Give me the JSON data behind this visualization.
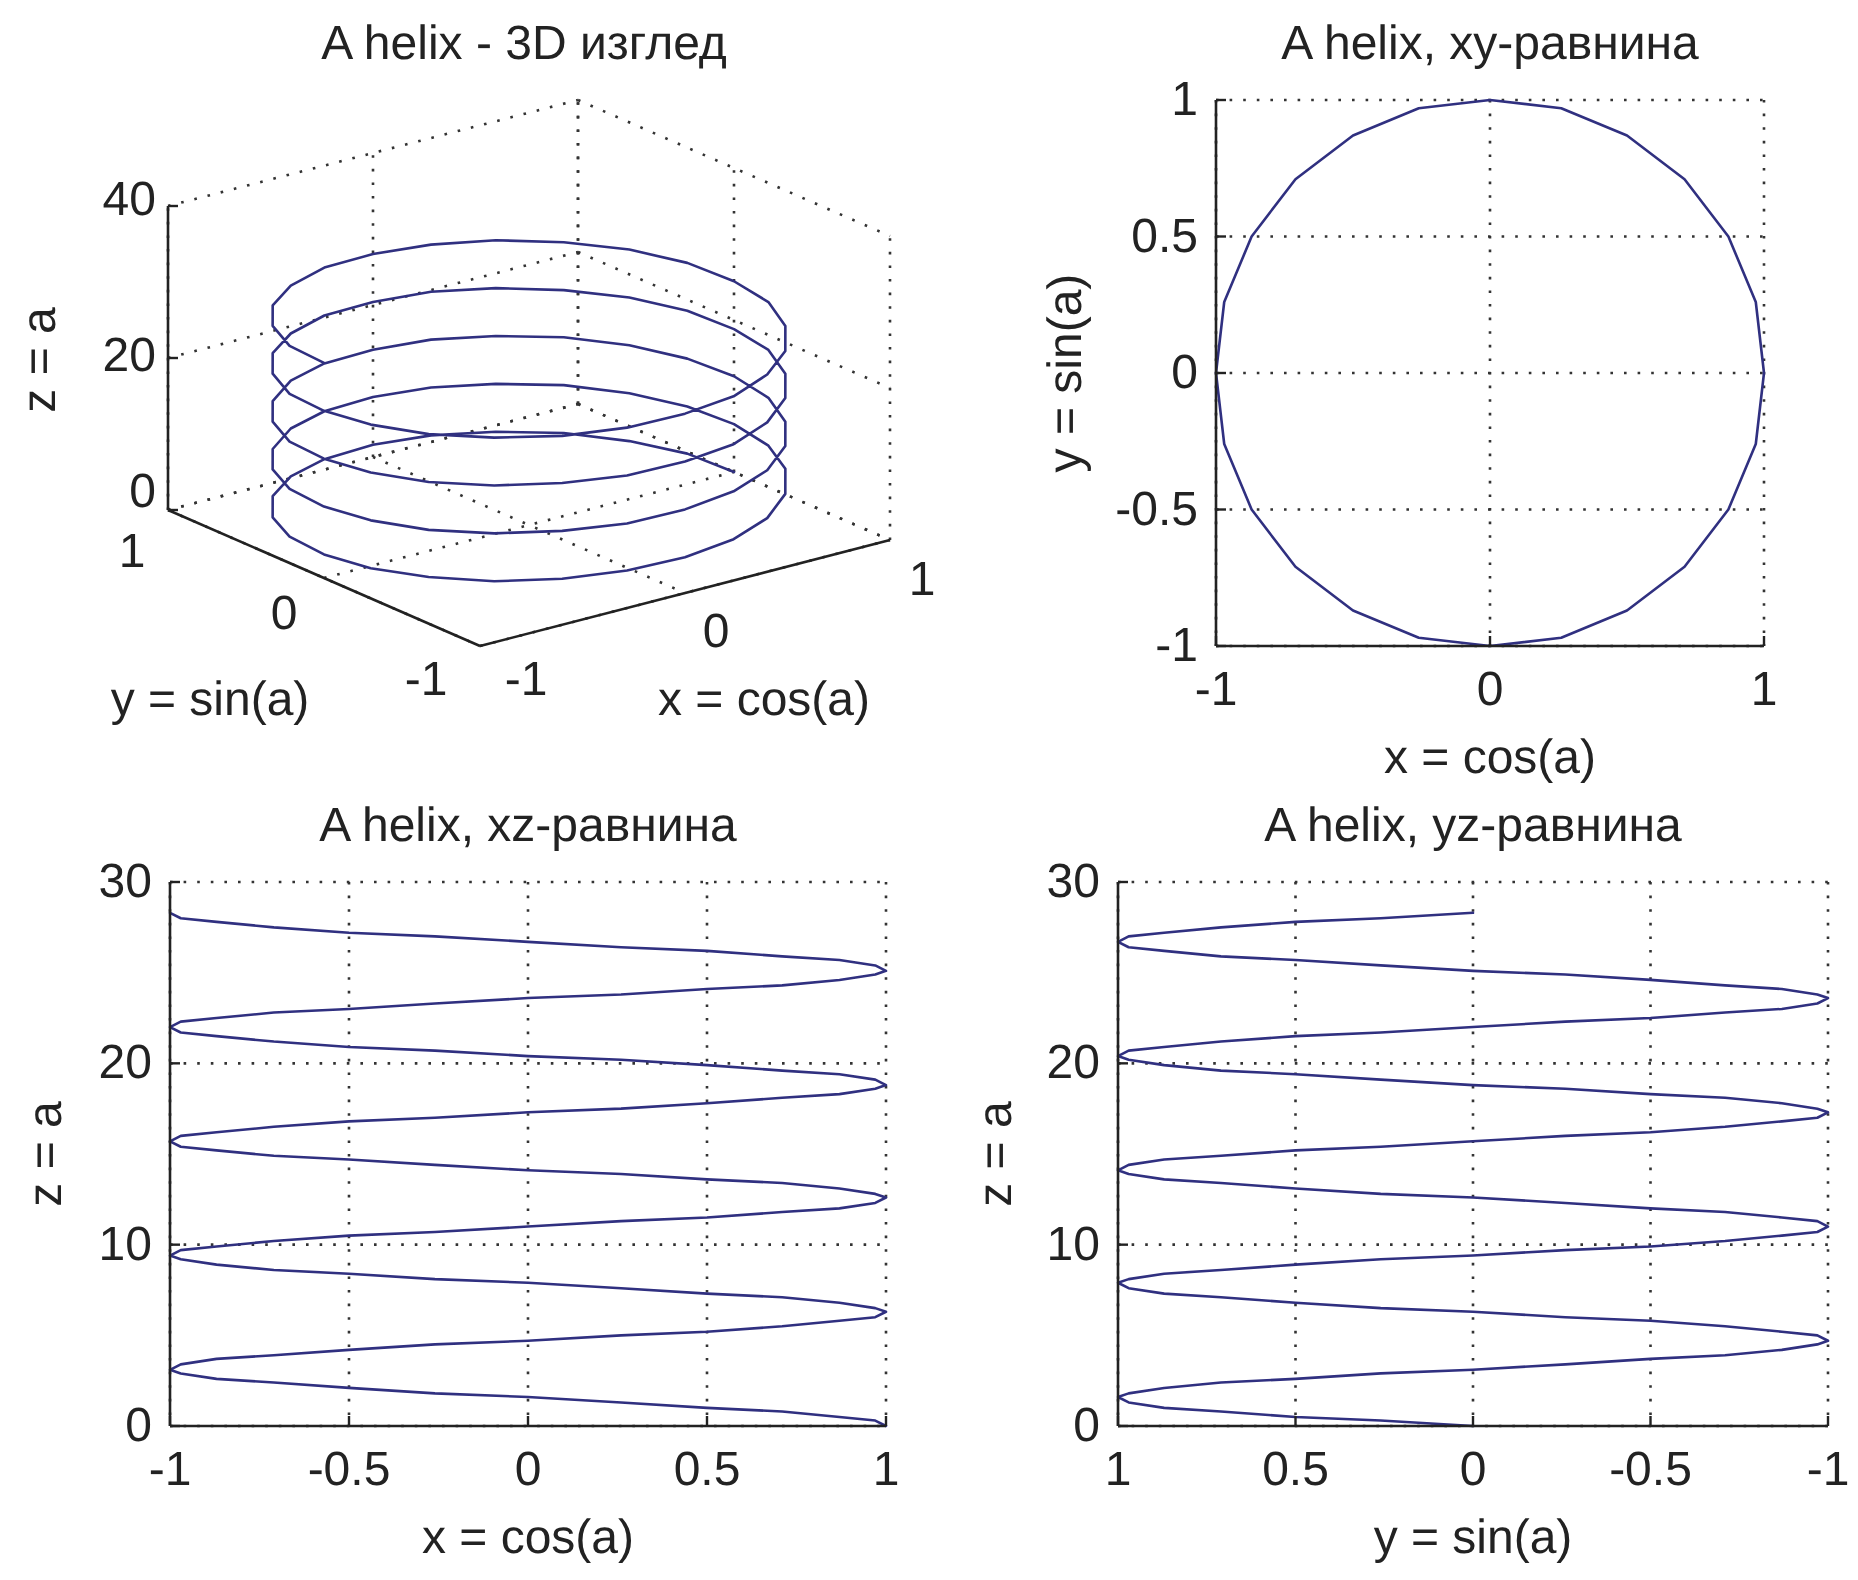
{
  "chart_data": [
    {
      "type": "other",
      "title": "A helix - 3D изглед",
      "xlabel": "x = cos(a)",
      "x2label": "y = sin(a)",
      "ylabel": "z = a",
      "annotations": [
        "40",
        "20",
        "0",
        "1",
        "0",
        "-1",
        "-1",
        "0",
        "1"
      ]
    },
    {
      "type": "line",
      "title": "A helix, xy-равнина",
      "xlabel": "x = cos(a)",
      "ylabel": "y = sin(a)",
      "xlim": [
        -1,
        1
      ],
      "xticks": [
        -1,
        0,
        1
      ],
      "ylim": [
        -1,
        1
      ],
      "yticks": [
        -1,
        -0.5,
        0,
        0.5,
        1
      ],
      "grid": true,
      "series": [
        {
          "color": "#303080",
          "x": [
            1,
            0.97,
            0.87,
            0.71,
            0.5,
            0.26,
            0,
            -0.26,
            -0.5,
            -0.71,
            -0.87,
            -0.97,
            -1,
            -0.97,
            -0.87,
            -0.71,
            -0.5,
            -0.26,
            0,
            0.26,
            0.5,
            0.71,
            0.87,
            0.97,
            1,
            0.97,
            0.87,
            0.71,
            0.5,
            0.26,
            0,
            -0.26,
            -0.5,
            -0.71,
            -0.87,
            -0.97,
            -1,
            -0.97,
            -0.87,
            -0.71,
            -0.5,
            -0.26,
            0,
            0.26,
            0.5,
            0.71,
            0.87,
            0.97,
            1,
            0.97,
            0.87,
            0.71,
            0.5,
            0.26,
            0,
            -0.26,
            -0.5,
            -0.71,
            -0.87,
            -0.97,
            -1,
            -0.97,
            -0.87,
            -0.71,
            -0.5,
            -0.26,
            0,
            0.26,
            0.5,
            0.71,
            0.87,
            0.97,
            1,
            0.97,
            0.87,
            0.71,
            0.5,
            0.26,
            0,
            -0.26,
            -0.5,
            -0.71,
            -0.87,
            -0.97,
            -1,
            -0.97,
            -0.87,
            -0.71,
            -0.5,
            -0.26,
            0,
            0.26,
            0.5,
            0.71,
            0.87,
            0.97,
            1,
            0.97,
            0.87,
            0.71,
            0.5,
            0.26,
            0,
            -0.26,
            -0.5,
            -0.71,
            -0.87,
            -0.97,
            -1
          ],
          "values": [
            0,
            0.26,
            0.5,
            0.71,
            0.87,
            0.97,
            1,
            0.97,
            0.87,
            0.71,
            0.5,
            0.26,
            0,
            -0.26,
            -0.5,
            -0.71,
            -0.87,
            -0.97,
            -1,
            -0.97,
            -0.87,
            -0.71,
            -0.5,
            -0.26,
            0,
            0.26,
            0.5,
            0.71,
            0.87,
            0.97,
            1,
            0.97,
            0.87,
            0.71,
            0.5,
            0.26,
            0,
            -0.26,
            -0.5,
            -0.71,
            -0.87,
            -0.97,
            -1,
            -0.97,
            -0.87,
            -0.71,
            -0.5,
            -0.26,
            0,
            0.26,
            0.5,
            0.71,
            0.87,
            0.97,
            1,
            0.97,
            0.87,
            0.71,
            0.5,
            0.26,
            0,
            -0.26,
            -0.5,
            -0.71,
            -0.87,
            -0.97,
            -1,
            -0.97,
            -0.87,
            -0.71,
            -0.5,
            -0.26,
            0,
            0.26,
            0.5,
            0.71,
            0.87,
            0.97,
            1,
            0.97,
            0.87,
            0.71,
            0.5,
            0.26,
            0,
            -0.26,
            -0.5,
            -0.71,
            -0.87,
            -0.97,
            -1,
            -0.97,
            -0.87,
            -0.71,
            -0.5,
            -0.26,
            0,
            0.26,
            0.5,
            0.71,
            0.87,
            0.97,
            1,
            0.97,
            0.87,
            0.71,
            0.5,
            0.26,
            0
          ]
        }
      ]
    },
    {
      "type": "line",
      "title": "A helix, xz-равнина",
      "xlabel": "x = cos(a)",
      "ylabel": "z = a",
      "xlim": [
        -1,
        1
      ],
      "xticks": [
        -1,
        -0.5,
        0,
        0.5,
        1
      ],
      "ylim": [
        0,
        30
      ],
      "yticks": [
        0,
        10,
        20,
        30
      ],
      "grid": true,
      "series": [
        {
          "color": "#303080",
          "x": [
            1,
            0.97,
            0.87,
            0.71,
            0.5,
            0.26,
            0,
            -0.26,
            -0.5,
            -0.71,
            -0.87,
            -0.97,
            -1,
            -0.97,
            -0.87,
            -0.71,
            -0.5,
            -0.26,
            0,
            0.26,
            0.5,
            0.71,
            0.87,
            0.97,
            1,
            0.97,
            0.87,
            0.71,
            0.5,
            0.26,
            0,
            -0.26,
            -0.5,
            -0.71,
            -0.87,
            -0.97,
            -1,
            -0.97,
            -0.87,
            -0.71,
            -0.5,
            -0.26,
            0,
            0.26,
            0.5,
            0.71,
            0.87,
            0.97,
            1,
            0.97,
            0.87,
            0.71,
            0.5,
            0.26,
            0,
            -0.26,
            -0.5,
            -0.71,
            -0.87,
            -0.97,
            -1,
            -0.97,
            -0.87,
            -0.71,
            -0.5,
            -0.26,
            0,
            0.26,
            0.5,
            0.71,
            0.87,
            0.97,
            1,
            0.97,
            0.87,
            0.71,
            0.5,
            0.26,
            0,
            -0.26,
            -0.5,
            -0.71,
            -0.87,
            -0.97,
            -1,
            -0.97,
            -0.87,
            -0.71,
            -0.5,
            -0.26,
            0,
            0.26,
            0.5,
            0.71,
            0.87,
            0.97,
            1,
            0.97,
            0.87,
            0.71,
            0.5,
            0.26,
            0,
            -0.26,
            -0.5,
            -0.71,
            -0.87,
            -0.97,
            -1
          ],
          "values": [
            0,
            0.3,
            0.5,
            0.8,
            1,
            1.3,
            1.6,
            1.8,
            2.1,
            2.4,
            2.6,
            2.9,
            3.1,
            3.4,
            3.7,
            3.9,
            4.2,
            4.5,
            4.7,
            5,
            5.2,
            5.5,
            5.8,
            6,
            6.3,
            6.5,
            6.8,
            7.1,
            7.3,
            7.6,
            7.9,
            8.1,
            8.4,
            8.6,
            8.9,
            9.2,
            9.4,
            9.7,
            9.9,
            10.2,
            10.5,
            10.7,
            11,
            11.3,
            11.5,
            11.8,
            12,
            12.3,
            12.6,
            12.8,
            13.1,
            13.4,
            13.6,
            13.9,
            14.1,
            14.4,
            14.7,
            14.9,
            15.2,
            15.4,
            15.7,
            16,
            16.2,
            16.5,
            16.8,
            17,
            17.3,
            17.5,
            17.8,
            18.1,
            18.3,
            18.6,
            18.8,
            19.1,
            19.4,
            19.6,
            19.9,
            20.2,
            20.4,
            20.7,
            20.9,
            21.2,
            21.5,
            21.7,
            22,
            22.3,
            22.5,
            22.8,
            23,
            23.3,
            23.6,
            23.8,
            24.1,
            24.3,
            24.6,
            24.9,
            25.1,
            25.4,
            25.7,
            25.9,
            26.2,
            26.4,
            26.7,
            27,
            27.2,
            27.5,
            27.8,
            28,
            28.3
          ]
        }
      ]
    },
    {
      "type": "line",
      "title": "A helix, yz-равнина",
      "xlabel": "y = sin(a)",
      "ylabel": "z = a",
      "xlim": [
        1,
        -1
      ],
      "xticks": [
        1,
        0.5,
        0,
        -0.5,
        -1
      ],
      "ylim": [
        0,
        30
      ],
      "yticks": [
        0,
        10,
        20,
        30
      ],
      "grid": true,
      "series": [
        {
          "color": "#303080",
          "x": [
            0,
            0.26,
            0.5,
            0.71,
            0.87,
            0.97,
            1,
            0.97,
            0.87,
            0.71,
            0.5,
            0.26,
            0,
            -0.26,
            -0.5,
            -0.71,
            -0.87,
            -0.97,
            -1,
            -0.97,
            -0.87,
            -0.71,
            -0.5,
            -0.26,
            0,
            0.26,
            0.5,
            0.71,
            0.87,
            0.97,
            1,
            0.97,
            0.87,
            0.71,
            0.5,
            0.26,
            0,
            -0.26,
            -0.5,
            -0.71,
            -0.87,
            -0.97,
            -1,
            -0.97,
            -0.87,
            -0.71,
            -0.5,
            -0.26,
            0,
            0.26,
            0.5,
            0.71,
            0.87,
            0.97,
            1,
            0.97,
            0.87,
            0.71,
            0.5,
            0.26,
            0,
            -0.26,
            -0.5,
            -0.71,
            -0.87,
            -0.97,
            -1,
            -0.97,
            -0.87,
            -0.71,
            -0.5,
            -0.26,
            0,
            0.26,
            0.5,
            0.71,
            0.87,
            0.97,
            1,
            0.97,
            0.87,
            0.71,
            0.5,
            0.26,
            0,
            -0.26,
            -0.5,
            -0.71,
            -0.87,
            -0.97,
            -1,
            -0.97,
            -0.87,
            -0.71,
            -0.5,
            -0.26,
            0,
            0.26,
            0.5,
            0.71,
            0.87,
            0.97,
            1,
            0.97,
            0.87,
            0.71,
            0.5,
            0.26,
            0
          ],
          "values": [
            0,
            0.3,
            0.5,
            0.8,
            1,
            1.3,
            1.6,
            1.8,
            2.1,
            2.4,
            2.6,
            2.9,
            3.1,
            3.4,
            3.7,
            3.9,
            4.2,
            4.5,
            4.7,
            5,
            5.2,
            5.5,
            5.8,
            6,
            6.3,
            6.5,
            6.8,
            7.1,
            7.3,
            7.6,
            7.9,
            8.1,
            8.4,
            8.6,
            8.9,
            9.2,
            9.4,
            9.7,
            9.9,
            10.2,
            10.5,
            10.7,
            11,
            11.3,
            11.5,
            11.8,
            12,
            12.3,
            12.6,
            12.8,
            13.1,
            13.4,
            13.6,
            13.9,
            14.1,
            14.4,
            14.7,
            14.9,
            15.2,
            15.4,
            15.7,
            16,
            16.2,
            16.5,
            16.8,
            17,
            17.3,
            17.5,
            17.8,
            18.1,
            18.3,
            18.6,
            18.8,
            19.1,
            19.4,
            19.6,
            19.9,
            20.2,
            20.4,
            20.7,
            20.9,
            21.2,
            21.5,
            21.7,
            22,
            22.3,
            22.5,
            22.8,
            23,
            23.3,
            23.6,
            23.8,
            24.1,
            24.3,
            24.6,
            24.9,
            25.1,
            25.4,
            25.7,
            25.9,
            26.2,
            26.4,
            26.7,
            27,
            27.2,
            27.5,
            27.8,
            28,
            28.3
          ]
        }
      ]
    }
  ]
}
